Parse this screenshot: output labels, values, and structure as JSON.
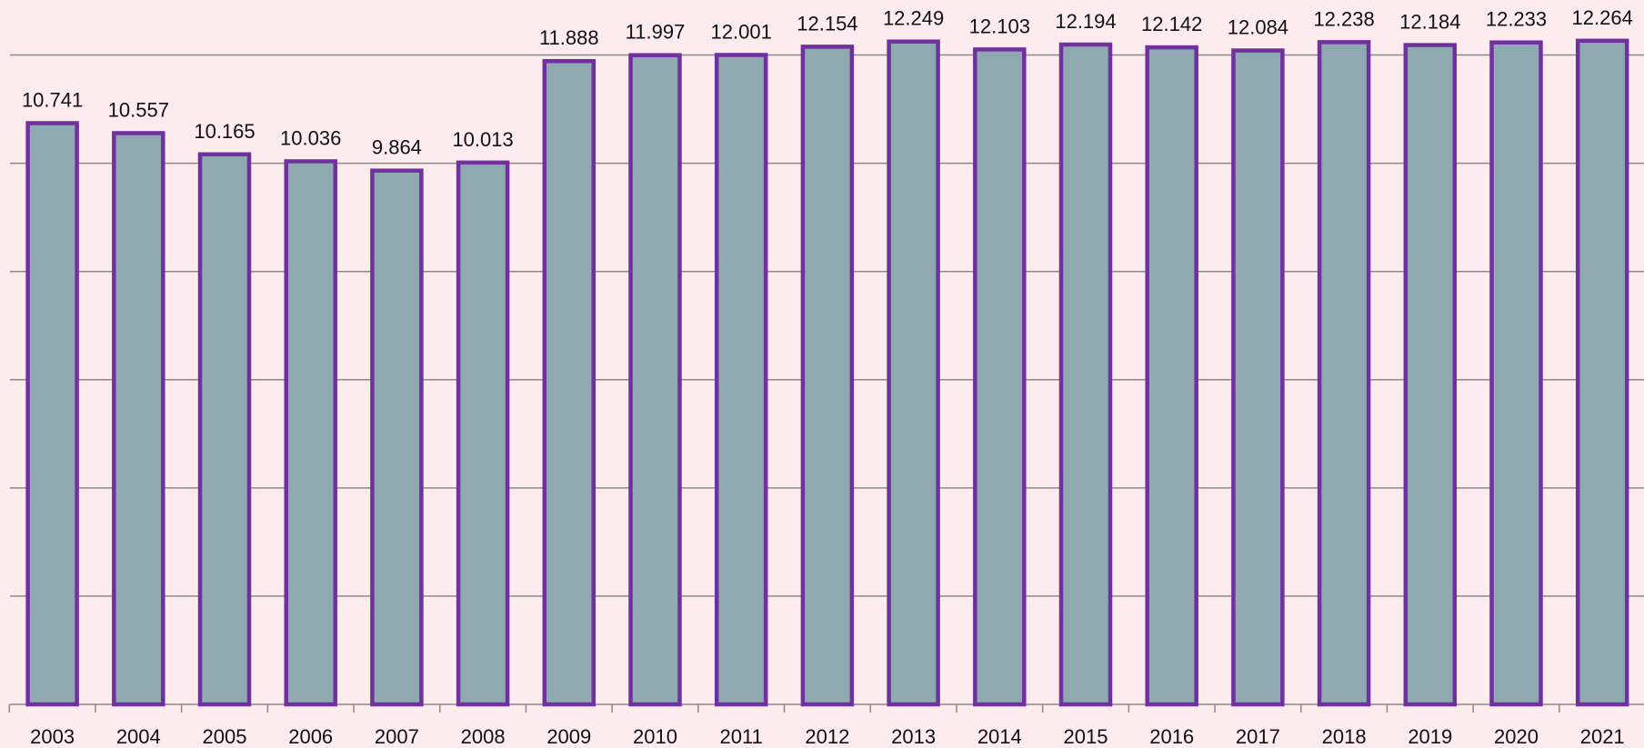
{
  "chart_data": {
    "type": "bar",
    "categories": [
      "2003",
      "2004",
      "2005",
      "2006",
      "2007",
      "2008",
      "2009",
      "2010",
      "2011",
      "2012",
      "2013",
      "2014",
      "2015",
      "2016",
      "2017",
      "2018",
      "2019",
      "2020",
      "2021"
    ],
    "values": [
      10.741,
      10.557,
      10.165,
      10.036,
      9.864,
      10.013,
      11.888,
      11.997,
      12.001,
      12.154,
      12.249,
      12.103,
      12.194,
      12.142,
      12.084,
      12.238,
      12.184,
      12.233,
      12.264
    ],
    "color": "#8fa9b1",
    "edge_color": "#7030a0",
    "ylim": [
      0,
      13
    ],
    "yticks": [
      0,
      2,
      4,
      6,
      8,
      10,
      12
    ],
    "grid": true
  }
}
